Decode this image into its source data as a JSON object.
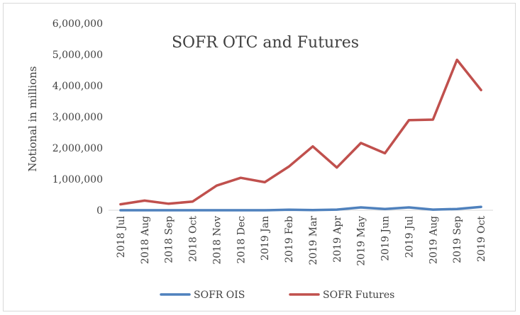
{
  "chart_data": {
    "type": "line",
    "title": "SOFR OTC and Futures",
    "xlabel": "",
    "ylabel": "Notional in millions",
    "ylim": [
      0,
      6000000
    ],
    "yticks": [
      0,
      1000000,
      2000000,
      3000000,
      4000000,
      5000000,
      6000000
    ],
    "ytick_labels": [
      "0",
      "1,000,000",
      "2,000,000",
      "3,000,000",
      "4,000,000",
      "5,000,000",
      "6,000,000"
    ],
    "grid": false,
    "legend_position": "bottom",
    "categories": [
      "2018 Jul",
      "2018 Aug",
      "2018 Sep",
      "2018 Oct",
      "2018 Nov",
      "2018 Dec",
      "2019 Jan",
      "2019 Feb",
      "2019 Mar",
      "2019 Apr",
      "2019 May",
      "2019 Jun",
      "2019 Jul",
      "2019 Aug",
      "2019 Sep",
      "2019 Oct"
    ],
    "series": [
      {
        "name": "SOFR OIS",
        "color": "#4f81bd",
        "values": [
          0,
          0,
          0,
          0,
          0,
          0,
          0,
          15000,
          5000,
          20000,
          90000,
          40000,
          90000,
          20000,
          40000,
          110000
        ]
      },
      {
        "name": "SOFR Futures",
        "color": "#c0504d",
        "values": [
          190000,
          310000,
          210000,
          280000,
          790000,
          1040000,
          900000,
          1400000,
          2050000,
          1370000,
          2160000,
          1830000,
          2890000,
          2910000,
          4830000,
          3860000
        ]
      }
    ]
  }
}
